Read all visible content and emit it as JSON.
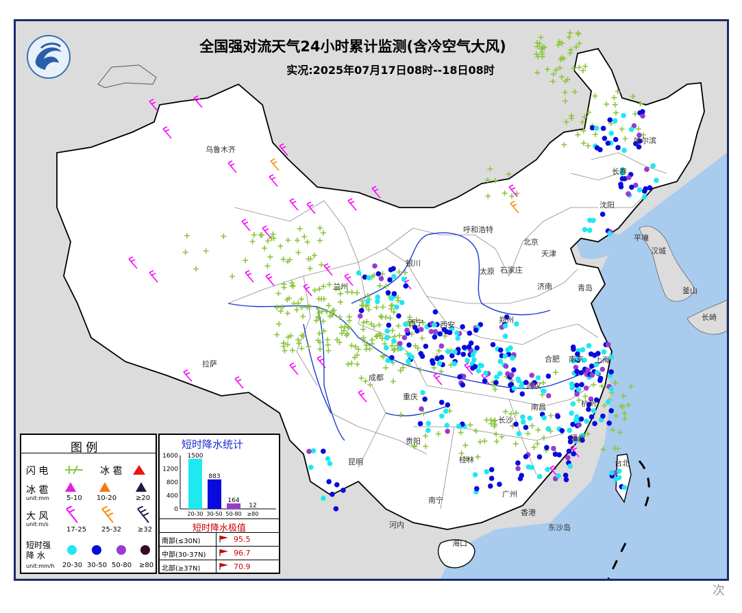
{
  "title": "全国强对流天气24小时累计监测(含冷空气大风)",
  "subtitle": "实况:2025年07月17日08时--18日08时",
  "colors": {
    "sea": "#a9cbee",
    "land": "#ffffff",
    "neighbor": "#dcdcdc",
    "lightning": "#8cc63f",
    "hail_small": "#e020e0",
    "hail_mid": "#f07a10",
    "hail_large": "#1a1a4a",
    "wind_17_25": "#ff00ff",
    "wind_25_32": "#ff8c00",
    "wind_32": "#1a1a4a",
    "rain_20_30": "#1ee8f0",
    "rain_30_50": "#0a0adc",
    "rain_50_80": "#9a3ad0",
    "rain_80": "#3a0a2a",
    "river": "#1a3ad0",
    "border": "#000000"
  },
  "cities": [
    {
      "name": "乌鲁木齐"
    },
    {
      "name": "拉萨"
    },
    {
      "name": "西宁"
    },
    {
      "name": "兰州"
    },
    {
      "name": "银川"
    },
    {
      "name": "呼和浩特"
    },
    {
      "name": "太原"
    },
    {
      "name": "石家庄"
    },
    {
      "name": "北京"
    },
    {
      "name": "天津"
    },
    {
      "name": "济南"
    },
    {
      "name": "青岛"
    },
    {
      "name": "郑州"
    },
    {
      "name": "西安"
    },
    {
      "name": "成都"
    },
    {
      "name": "重庆"
    },
    {
      "name": "贵阳"
    },
    {
      "name": "昆明"
    },
    {
      "name": "南宁"
    },
    {
      "name": "桂林"
    },
    {
      "name": "广州"
    },
    {
      "name": "香港"
    },
    {
      "name": "长沙"
    },
    {
      "name": "南昌"
    },
    {
      "name": "武汉"
    },
    {
      "name": "合肥"
    },
    {
      "name": "南京"
    },
    {
      "name": "上海"
    },
    {
      "name": "杭州"
    },
    {
      "name": "福州"
    },
    {
      "name": "台北"
    },
    {
      "name": "沈阳"
    },
    {
      "name": "长春"
    },
    {
      "name": "哈尔滨"
    },
    {
      "name": "平壤"
    },
    {
      "name": "汉城"
    },
    {
      "name": "釜山"
    },
    {
      "name": "长崎"
    },
    {
      "name": "河内"
    },
    {
      "name": "东沙岛"
    },
    {
      "name": "海口"
    }
  ],
  "legend": {
    "title": "图    例",
    "lightning_label": "闪  电",
    "hail_label": "冰  雹",
    "hail_row_label": "冰  雹",
    "hail_unit": "unit:mm",
    "hail_ranges": [
      "5-10",
      "10-20",
      "≥20"
    ],
    "wind_label": "大  风",
    "wind_unit": "unit:m/s",
    "wind_ranges": [
      "17-25",
      "25-32",
      "≥32"
    ],
    "rain_label_1": "短时强",
    "rain_label_2": "降  水",
    "rain_unit": "unit:mm/h",
    "rain_ranges": [
      "20-30",
      "30-50",
      "50-80",
      "≥80"
    ]
  },
  "stats": {
    "title": "短时降水统计",
    "y_ticks": [
      "1600",
      "1200",
      "800",
      "400",
      "0"
    ],
    "extreme_title": "短时降水极值",
    "extremes": [
      {
        "region": "南部(≤30N)",
        "value": "95.5"
      },
      {
        "region": "中部(30-37N)",
        "value": "96.7"
      },
      {
        "region": "北部(≥37N)",
        "value": "70.9"
      }
    ]
  },
  "chart_data": {
    "type": "bar",
    "title": "短时降水统计",
    "categories": [
      "20-30",
      "30-50",
      "50-80",
      "≥80"
    ],
    "values": [
      1500,
      883,
      164,
      12
    ],
    "ylim": [
      0,
      1600
    ],
    "yticks": [
      0,
      400,
      800,
      1200,
      1600
    ],
    "colors": [
      "#1ee8f0",
      "#0a0adc",
      "#9a3ad0",
      "#3a0a2a"
    ]
  },
  "watermark": "次"
}
